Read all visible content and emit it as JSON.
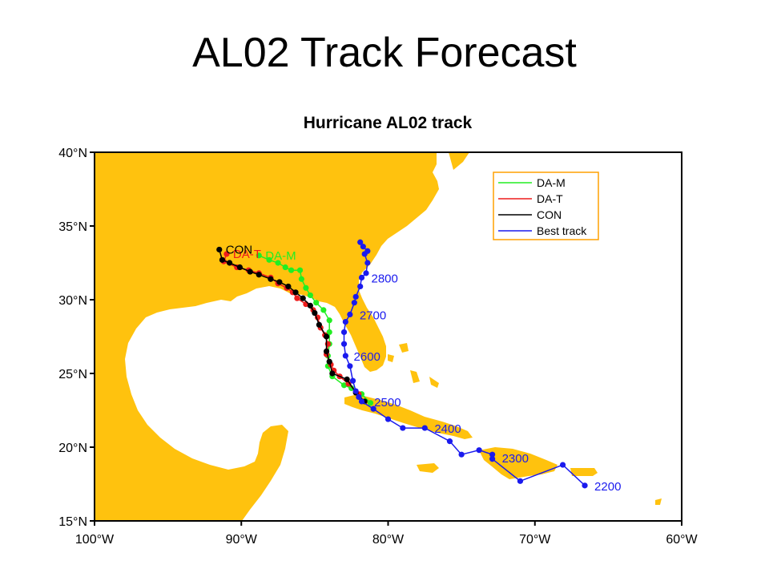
{
  "slide": {
    "title": "AL02 Track Forecast"
  },
  "chart_data": {
    "type": "map-track",
    "title": "Hurricane AL02 track",
    "xlim": [
      -100,
      -60
    ],
    "ylim": [
      15,
      40
    ],
    "x_ticks": [
      {
        "value": -100,
        "label": "100°W"
      },
      {
        "value": -90,
        "label": "90°W"
      },
      {
        "value": -80,
        "label": "80°W"
      },
      {
        "value": -70,
        "label": "70°W"
      },
      {
        "value": -60,
        "label": "60°W"
      }
    ],
    "y_ticks": [
      {
        "value": 15,
        "label": "15°N"
      },
      {
        "value": 20,
        "label": "20°N"
      },
      {
        "value": 25,
        "label": "25°N"
      },
      {
        "value": 30,
        "label": "30°N"
      },
      {
        "value": 35,
        "label": "35°N"
      },
      {
        "value": 40,
        "label": "40°N"
      }
    ],
    "colors": {
      "land": "#ffc20e",
      "ocean": "#ffffff",
      "legend_border": "#ffa000"
    },
    "legend_position": "top-right",
    "series": [
      {
        "name": "DA-M",
        "color": "#22ee22",
        "points": [
          [
            -81.2,
            23.0
          ],
          [
            -81.8,
            23.6
          ],
          [
            -82.5,
            24.0
          ],
          [
            -83.0,
            24.2
          ],
          [
            -83.8,
            24.8
          ],
          [
            -84.1,
            25.5
          ],
          [
            -84.1,
            26.2
          ],
          [
            -84.0,
            27.0
          ],
          [
            -84.0,
            27.8
          ],
          [
            -84.0,
            28.6
          ],
          [
            -84.4,
            29.3
          ],
          [
            -84.9,
            29.8
          ],
          [
            -85.3,
            30.3
          ],
          [
            -85.6,
            30.8
          ],
          [
            -85.9,
            31.4
          ],
          [
            -86.0,
            32.0
          ],
          [
            -86.6,
            32.0
          ],
          [
            -87.0,
            32.2
          ],
          [
            -87.5,
            32.5
          ],
          [
            -88.1,
            32.7
          ],
          [
            -88.8,
            33.0
          ]
        ],
        "end_label": "DA-M"
      },
      {
        "name": "DA-T",
        "color": "#ee1c1c",
        "points": [
          [
            -82.0,
            23.6
          ],
          [
            -82.7,
            24.3
          ],
          [
            -83.3,
            24.8
          ],
          [
            -83.7,
            25.2
          ],
          [
            -83.9,
            25.6
          ],
          [
            -84.2,
            26.3
          ],
          [
            -84.1,
            27.0
          ],
          [
            -84.3,
            27.6
          ],
          [
            -84.6,
            28.1
          ],
          [
            -84.8,
            28.8
          ],
          [
            -85.1,
            29.3
          ],
          [
            -85.6,
            29.7
          ],
          [
            -86.2,
            30.1
          ],
          [
            -86.5,
            30.5
          ],
          [
            -86.9,
            30.8
          ],
          [
            -87.5,
            31.1
          ],
          [
            -88.0,
            31.5
          ],
          [
            -88.8,
            31.8
          ],
          [
            -89.5,
            32.0
          ],
          [
            -90.3,
            32.2
          ],
          [
            -91.2,
            32.6
          ],
          [
            -91.0,
            33.1
          ]
        ],
        "end_label": "DA-T"
      },
      {
        "name": "CON",
        "color": "#000000",
        "points": [
          [
            -81.6,
            23.1
          ],
          [
            -82.2,
            23.7
          ],
          [
            -82.8,
            24.6
          ],
          [
            -83.8,
            25.0
          ],
          [
            -84.0,
            25.8
          ],
          [
            -84.2,
            26.5
          ],
          [
            -84.2,
            27.5
          ],
          [
            -84.7,
            28.3
          ],
          [
            -85.0,
            29.1
          ],
          [
            -85.3,
            29.6
          ],
          [
            -85.8,
            30.1
          ],
          [
            -86.3,
            30.5
          ],
          [
            -86.8,
            30.9
          ],
          [
            -87.4,
            31.2
          ],
          [
            -88.0,
            31.4
          ],
          [
            -88.8,
            31.7
          ],
          [
            -89.4,
            31.9
          ],
          [
            -90.1,
            32.2
          ],
          [
            -90.8,
            32.5
          ],
          [
            -91.3,
            32.7
          ],
          [
            -91.5,
            33.4
          ]
        ],
        "end_label": "CON"
      },
      {
        "name": "Best track",
        "color": "#1a1aee",
        "points": [
          [
            -66.6,
            17.4
          ],
          [
            -68.1,
            18.8
          ],
          [
            -71.0,
            17.7
          ],
          [
            -72.9,
            19.2
          ],
          [
            -72.9,
            19.5
          ],
          [
            -73.8,
            19.8
          ],
          [
            -75.0,
            19.5
          ],
          [
            -75.8,
            20.4
          ],
          [
            -77.5,
            21.3
          ],
          [
            -79.0,
            21.3
          ],
          [
            -80.0,
            21.9
          ],
          [
            -81.0,
            22.6
          ],
          [
            -81.8,
            23.1
          ],
          [
            -82.0,
            23.4
          ],
          [
            -82.2,
            23.8
          ],
          [
            -82.4,
            24.5
          ],
          [
            -82.6,
            25.5
          ],
          [
            -82.9,
            26.2
          ],
          [
            -83.0,
            27.0
          ],
          [
            -83.0,
            27.8
          ],
          [
            -82.9,
            28.5
          ],
          [
            -82.6,
            29.0
          ],
          [
            -82.3,
            29.8
          ],
          [
            -82.2,
            30.2
          ],
          [
            -81.9,
            30.9
          ],
          [
            -81.8,
            31.5
          ],
          [
            -81.5,
            31.8
          ],
          [
            -81.4,
            32.5
          ],
          [
            -81.6,
            33.1
          ],
          [
            -81.4,
            33.3
          ],
          [
            -81.7,
            33.6
          ],
          [
            -81.9,
            33.9
          ]
        ],
        "time_labels": [
          {
            "text": "2200",
            "lon": -66.6,
            "lat": 17.4
          },
          {
            "text": "2300",
            "lon": -72.9,
            "lat": 19.3
          },
          {
            "text": "2400",
            "lon": -77.5,
            "lat": 21.3
          },
          {
            "text": "2500",
            "lon": -81.6,
            "lat": 23.1
          },
          {
            "text": "2600",
            "lon": -83.0,
            "lat": 26.2
          },
          {
            "text": "2700",
            "lon": -82.6,
            "lat": 29.0
          },
          {
            "text": "2800",
            "lon": -81.8,
            "lat": 31.5
          }
        ]
      }
    ]
  }
}
